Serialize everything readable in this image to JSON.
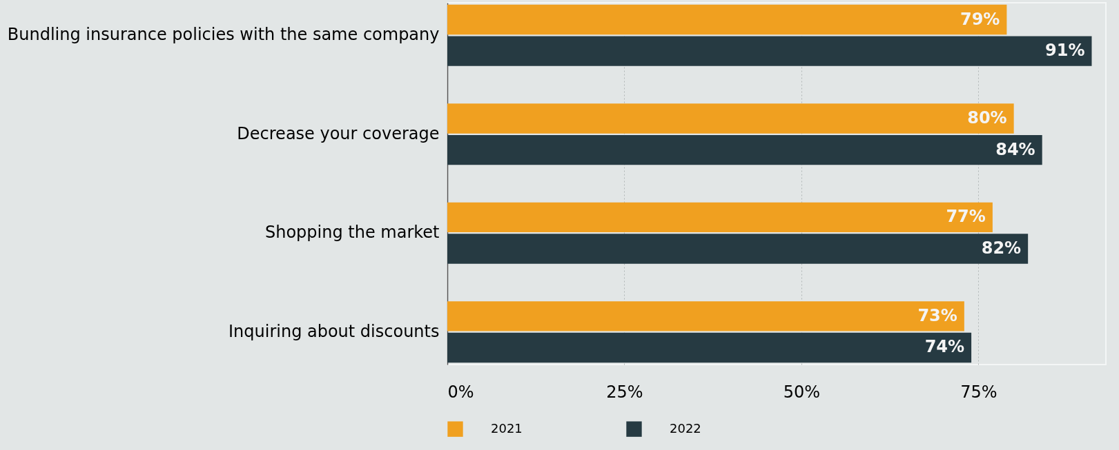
{
  "chart_data": {
    "type": "bar",
    "orientation": "horizontal",
    "categories": [
      "Bundling insurance policies with the same company",
      "Decrease your coverage",
      "Shopping the market",
      "Inquiring about discounts"
    ],
    "series": [
      {
        "name": "2021",
        "color": "#f0a020",
        "values": [
          79,
          80,
          77,
          73
        ],
        "value_labels": [
          "79%",
          "80%",
          "77%",
          "73%"
        ]
      },
      {
        "name": "2022",
        "color": "#263a42",
        "values": [
          91,
          84,
          82,
          74
        ],
        "value_labels": [
          "91%",
          "84%",
          "82%",
          "74%"
        ]
      }
    ],
    "xlim": [
      0,
      93
    ],
    "xticks": [
      {
        "value": 0,
        "label": "0%"
      },
      {
        "value": 25,
        "label": "25%"
      },
      {
        "value": 50,
        "label": "50%"
      },
      {
        "value": 75,
        "label": "75%"
      }
    ],
    "grid": "x",
    "legend": "bottom"
  }
}
